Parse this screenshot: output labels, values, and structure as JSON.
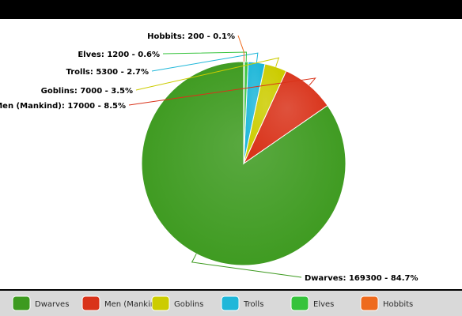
{
  "chart_data": {
    "type": "pie",
    "title": "",
    "categories": [
      "Dwarves",
      "Men (Mankind)",
      "Goblins",
      "Trolls",
      "Elves",
      "Hobbits"
    ],
    "values": [
      169300,
      17000,
      7000,
      5300,
      1200,
      200
    ],
    "percents": [
      "84.7%",
      "8.5%",
      "3.5%",
      "2.7%",
      "0.6%",
      "0.1%"
    ],
    "data_labels": [
      "Dwarves: 169300 - 84.7%",
      "Men (Mankind): 17000 - 8.5%",
      "Goblins: 7000 - 3.5%",
      "Trolls: 5300 - 2.7%",
      "Elves: 1200 - 0.6%",
      "Hobbits: 200 - 0.1%"
    ],
    "colors": [
      "#3d9a1f",
      "#d9331a",
      "#cccc00",
      "#1fb7d9",
      "#36c33c",
      "#ee6a1d"
    ],
    "legend_placement": "bottom",
    "legend_entries": [
      "Dwarves",
      "Men (Mankind)",
      "Goblins",
      "Trolls",
      "Elves",
      "Hobbits"
    ]
  }
}
